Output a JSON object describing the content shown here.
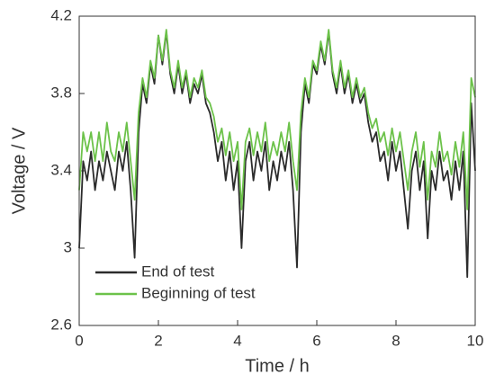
{
  "chart_data": {
    "type": "line",
    "xlabel": "Time / h",
    "ylabel": "Voltage / V",
    "x": [
      0,
      0.1,
      0.2,
      0.3,
      0.4,
      0.5,
      0.6,
      0.7,
      0.8,
      0.9,
      1,
      1.1,
      1.2,
      1.3,
      1.4,
      1.5,
      1.6,
      1.7,
      1.8,
      1.9,
      2,
      2.1,
      2.2,
      2.3,
      2.4,
      2.5,
      2.6,
      2.7,
      2.8,
      2.9,
      3,
      3.1,
      3.2,
      3.3,
      3.4,
      3.5,
      3.6,
      3.7,
      3.8,
      3.9,
      4,
      4.1,
      4.2,
      4.3,
      4.4,
      4.5,
      4.6,
      4.7,
      4.8,
      4.9,
      5,
      5.1,
      5.2,
      5.3,
      5.4,
      5.5,
      5.6,
      5.7,
      5.8,
      5.9,
      6,
      6.1,
      6.2,
      6.3,
      6.4,
      6.5,
      6.6,
      6.7,
      6.8,
      6.9,
      7,
      7.1,
      7.2,
      7.3,
      7.4,
      7.5,
      7.6,
      7.7,
      7.8,
      7.9,
      8,
      8.1,
      8.2,
      8.3,
      8.4,
      8.5,
      8.6,
      8.7,
      8.8,
      8.9,
      9,
      9.1,
      9.2,
      9.3,
      9.4,
      9.5,
      9.6,
      9.7,
      9.8,
      9.9,
      10
    ],
    "series": [
      {
        "name": "End of test",
        "color": "#2b2b2b",
        "values": [
          3.0,
          3.45,
          3.35,
          3.5,
          3.3,
          3.45,
          3.35,
          3.5,
          3.4,
          3.3,
          3.5,
          3.4,
          3.55,
          3.3,
          2.95,
          3.6,
          3.85,
          3.75,
          3.95,
          3.85,
          4.1,
          3.95,
          4.12,
          3.9,
          3.8,
          3.95,
          3.8,
          3.9,
          3.75,
          3.85,
          3.8,
          3.9,
          3.75,
          3.7,
          3.6,
          3.45,
          3.55,
          3.35,
          3.5,
          3.3,
          3.45,
          3.0,
          3.45,
          3.55,
          3.35,
          3.5,
          3.4,
          3.55,
          3.3,
          3.45,
          3.35,
          3.5,
          3.4,
          3.55,
          3.3,
          2.9,
          3.6,
          3.85,
          3.75,
          3.95,
          3.9,
          4.05,
          3.95,
          4.12,
          3.9,
          3.8,
          3.95,
          3.8,
          3.9,
          3.75,
          3.85,
          3.75,
          3.8,
          3.65,
          3.55,
          3.6,
          3.45,
          3.5,
          3.35,
          3.55,
          3.4,
          3.5,
          3.3,
          3.1,
          3.4,
          3.5,
          3.3,
          3.45,
          3.05,
          3.4,
          3.3,
          3.5,
          3.35,
          3.4,
          3.25,
          3.45,
          3.3,
          3.5,
          2.85,
          3.75,
          3.4
        ]
      },
      {
        "name": "Beginning of test",
        "color": "#6cc24a",
        "values": [
          3.3,
          3.6,
          3.5,
          3.6,
          3.45,
          3.6,
          3.45,
          3.65,
          3.5,
          3.45,
          3.6,
          3.5,
          3.65,
          3.45,
          3.25,
          3.7,
          3.88,
          3.78,
          3.97,
          3.88,
          4.1,
          3.97,
          4.13,
          3.92,
          3.83,
          3.97,
          3.83,
          3.92,
          3.78,
          3.88,
          3.83,
          3.92,
          3.78,
          3.75,
          3.68,
          3.55,
          3.62,
          3.48,
          3.6,
          3.45,
          3.55,
          3.2,
          3.55,
          3.62,
          3.48,
          3.6,
          3.5,
          3.65,
          3.45,
          3.55,
          3.48,
          3.6,
          3.5,
          3.65,
          3.45,
          3.3,
          3.7,
          3.88,
          3.78,
          3.97,
          3.92,
          4.07,
          3.97,
          4.13,
          3.92,
          3.83,
          3.97,
          3.83,
          3.92,
          3.78,
          3.88,
          3.78,
          3.83,
          3.7,
          3.62,
          3.67,
          3.55,
          3.6,
          3.48,
          3.62,
          3.5,
          3.6,
          3.45,
          3.3,
          3.5,
          3.6,
          3.42,
          3.55,
          3.25,
          3.5,
          3.42,
          3.6,
          3.45,
          3.5,
          3.38,
          3.55,
          3.42,
          3.6,
          3.2,
          3.88,
          3.78
        ]
      }
    ],
    "xlim": [
      0,
      10
    ],
    "xticks": [
      0,
      2,
      4,
      6,
      8,
      10
    ],
    "ylim": [
      2.6,
      4.2
    ],
    "yticks": [
      2.6,
      3,
      3.4,
      3.8,
      4.2
    ],
    "legend": "lower left"
  }
}
